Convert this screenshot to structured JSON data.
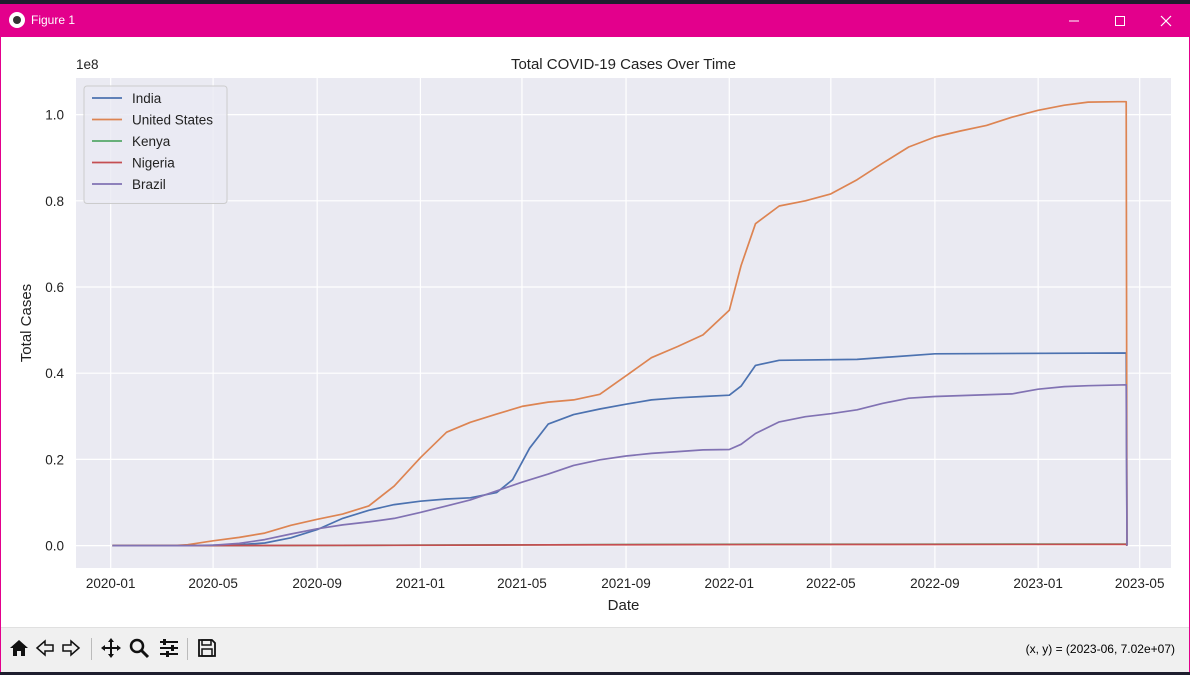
{
  "window": {
    "title": "Figure 1",
    "minimize_icon": "minimize-icon",
    "maximize_icon": "maximize-icon",
    "close_icon": "close-icon"
  },
  "toolbar": {
    "items": [
      "home-icon",
      "back-icon",
      "forward-icon",
      "pan-icon",
      "zoom-icon",
      "configure-subplots-icon",
      "save-icon"
    ],
    "coordinates": "(x, y) = (2023-06, 7.02e+07)"
  },
  "chart_data": {
    "type": "line",
    "title": "Total COVID-19 Cases Over Time",
    "xlabel": "Date",
    "ylabel": "Total Cases",
    "y_offset_label": "1e8",
    "x_ticks": [
      "2020-01",
      "2020-05",
      "2020-09",
      "2021-01",
      "2021-05",
      "2021-09",
      "2022-01",
      "2022-05",
      "2022-09",
      "2023-01",
      "2023-05"
    ],
    "y_ticks": [
      "0.0",
      "0.2",
      "0.4",
      "0.6",
      "0.8",
      "1.0"
    ],
    "xlim": [
      "2019-11-21",
      "2023-06-07"
    ],
    "ylim": [
      -5200000,
      108500000
    ],
    "grid": true,
    "legend_position": "upper left",
    "series": [
      {
        "name": "India",
        "color": "#4c72b0",
        "points": [
          [
            "2020-01-03",
            0
          ],
          [
            "2020-04-01",
            2000
          ],
          [
            "2020-06-01",
            200000
          ],
          [
            "2020-07-01",
            600000
          ],
          [
            "2020-08-01",
            1800000
          ],
          [
            "2020-09-01",
            3700000
          ],
          [
            "2020-10-01",
            6300000
          ],
          [
            "2020-11-01",
            8200000
          ],
          [
            "2020-12-01",
            9500000
          ],
          [
            "2021-01-01",
            10300000
          ],
          [
            "2021-02-01",
            10800000
          ],
          [
            "2021-03-01",
            11100000
          ],
          [
            "2021-04-01",
            12300000
          ],
          [
            "2021-04-20",
            15300000
          ],
          [
            "2021-05-10",
            22600000
          ],
          [
            "2021-06-01",
            28200000
          ],
          [
            "2021-07-01",
            30400000
          ],
          [
            "2021-08-01",
            31700000
          ],
          [
            "2021-09-01",
            32800000
          ],
          [
            "2021-10-01",
            33800000
          ],
          [
            "2021-11-01",
            34300000
          ],
          [
            "2021-12-01",
            34600000
          ],
          [
            "2022-01-01",
            34900000
          ],
          [
            "2022-01-15",
            37000000
          ],
          [
            "2022-02-01",
            41800000
          ],
          [
            "2022-03-01",
            43000000
          ],
          [
            "2022-06-01",
            43200000
          ],
          [
            "2022-09-01",
            44500000
          ],
          [
            "2023-04-15",
            44700000
          ],
          [
            "2023-04-16",
            0
          ]
        ]
      },
      {
        "name": "United States",
        "color": "#dd8452",
        "points": [
          [
            "2020-01-03",
            0
          ],
          [
            "2020-03-15",
            3500
          ],
          [
            "2020-04-01",
            200000
          ],
          [
            "2020-05-01",
            1100000
          ],
          [
            "2020-06-01",
            1900000
          ],
          [
            "2020-07-01",
            2900000
          ],
          [
            "2020-08-01",
            4700000
          ],
          [
            "2020-09-01",
            6100000
          ],
          [
            "2020-10-01",
            7300000
          ],
          [
            "2020-11-01",
            9200000
          ],
          [
            "2020-12-01",
            13800000
          ],
          [
            "2021-01-01",
            20400000
          ],
          [
            "2021-02-01",
            26300000
          ],
          [
            "2021-03-01",
            28600000
          ],
          [
            "2021-04-01",
            30500000
          ],
          [
            "2021-05-01",
            32300000
          ],
          [
            "2021-06-01",
            33300000
          ],
          [
            "2021-07-01",
            33800000
          ],
          [
            "2021-08-01",
            35100000
          ],
          [
            "2021-09-01",
            39400000
          ],
          [
            "2021-10-01",
            43600000
          ],
          [
            "2021-11-01",
            46200000
          ],
          [
            "2021-12-01",
            48900000
          ],
          [
            "2022-01-01",
            54600000
          ],
          [
            "2022-01-15",
            65000000
          ],
          [
            "2022-02-01",
            74700000
          ],
          [
            "2022-03-01",
            78800000
          ],
          [
            "2022-04-01",
            80000000
          ],
          [
            "2022-05-01",
            81600000
          ],
          [
            "2022-06-01",
            84900000
          ],
          [
            "2022-07-01",
            88700000
          ],
          [
            "2022-08-01",
            92500000
          ],
          [
            "2022-09-01",
            94800000
          ],
          [
            "2022-10-01",
            96200000
          ],
          [
            "2022-11-01",
            97500000
          ],
          [
            "2022-12-01",
            99400000
          ],
          [
            "2023-01-01",
            101000000
          ],
          [
            "2023-02-01",
            102200000
          ],
          [
            "2023-03-01",
            102900000
          ],
          [
            "2023-04-05",
            103000000
          ],
          [
            "2023-04-15",
            103000000
          ],
          [
            "2023-04-16",
            0
          ]
        ]
      },
      {
        "name": "Kenya",
        "color": "#55a868",
        "points": [
          [
            "2020-01-03",
            0
          ],
          [
            "2020-06-01",
            2500
          ],
          [
            "2020-12-01",
            96000
          ],
          [
            "2021-06-01",
            180000
          ],
          [
            "2021-12-01",
            290000
          ],
          [
            "2022-06-01",
            330000
          ],
          [
            "2023-04-15",
            343000
          ],
          [
            "2023-04-16",
            0
          ]
        ]
      },
      {
        "name": "Nigeria",
        "color": "#c44e52",
        "points": [
          [
            "2020-01-03",
            0
          ],
          [
            "2020-06-01",
            10000
          ],
          [
            "2020-12-01",
            70000
          ],
          [
            "2021-06-01",
            167000
          ],
          [
            "2021-12-01",
            220000
          ],
          [
            "2022-06-01",
            256000
          ],
          [
            "2023-04-15",
            267000
          ],
          [
            "2023-04-16",
            0
          ]
        ]
      },
      {
        "name": "Brazil",
        "color": "#8172b3",
        "points": [
          [
            "2020-01-03",
            0
          ],
          [
            "2020-04-01",
            5000
          ],
          [
            "2020-05-01",
            90000
          ],
          [
            "2020-06-01",
            500000
          ],
          [
            "2020-07-01",
            1400000
          ],
          [
            "2020-08-01",
            2700000
          ],
          [
            "2020-09-01",
            3900000
          ],
          [
            "2020-10-01",
            4800000
          ],
          [
            "2020-11-01",
            5500000
          ],
          [
            "2020-12-01",
            6300000
          ],
          [
            "2021-01-01",
            7700000
          ],
          [
            "2021-02-01",
            9200000
          ],
          [
            "2021-03-01",
            10600000
          ],
          [
            "2021-04-01",
            12700000
          ],
          [
            "2021-05-01",
            14700000
          ],
          [
            "2021-06-01",
            16600000
          ],
          [
            "2021-07-01",
            18600000
          ],
          [
            "2021-08-01",
            19900000
          ],
          [
            "2021-09-01",
            20800000
          ],
          [
            "2021-10-01",
            21400000
          ],
          [
            "2021-11-01",
            21800000
          ],
          [
            "2021-12-01",
            22200000
          ],
          [
            "2022-01-01",
            22300000
          ],
          [
            "2022-01-15",
            23500000
          ],
          [
            "2022-02-01",
            26000000
          ],
          [
            "2022-03-01",
            28700000
          ],
          [
            "2022-04-01",
            29900000
          ],
          [
            "2022-05-01",
            30600000
          ],
          [
            "2022-06-01",
            31500000
          ],
          [
            "2022-07-01",
            33000000
          ],
          [
            "2022-08-01",
            34200000
          ],
          [
            "2022-09-01",
            34600000
          ],
          [
            "2022-10-01",
            34800000
          ],
          [
            "2022-12-01",
            35200000
          ],
          [
            "2023-01-01",
            36300000
          ],
          [
            "2023-02-01",
            36900000
          ],
          [
            "2023-03-01",
            37100000
          ],
          [
            "2023-04-15",
            37300000
          ],
          [
            "2023-04-16",
            0
          ]
        ]
      }
    ]
  }
}
